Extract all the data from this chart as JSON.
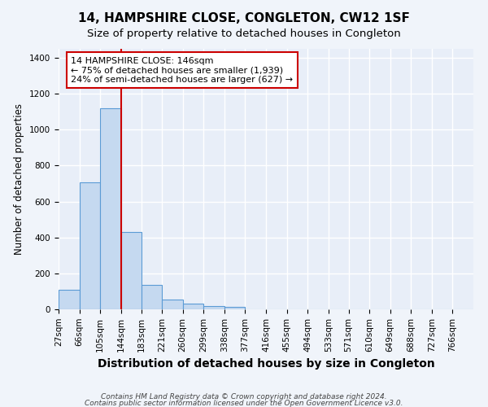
{
  "title": "14, HAMPSHIRE CLOSE, CONGLETON, CW12 1SF",
  "subtitle": "Size of property relative to detached houses in Congleton",
  "xlabel": "Distribution of detached houses by size in Congleton",
  "ylabel": "Number of detached properties",
  "footer_line1": "Contains HM Land Registry data © Crown copyright and database right 2024.",
  "footer_line2": "Contains public sector information licensed under the Open Government Licence v3.0.",
  "bar_edges": [
    27,
    66,
    105,
    144,
    183,
    221,
    260,
    299,
    338,
    377,
    416,
    455,
    494,
    533,
    571,
    610,
    649,
    688,
    727,
    766,
    805
  ],
  "bar_heights": [
    110,
    705,
    1120,
    430,
    135,
    53,
    32,
    18,
    13,
    0,
    0,
    0,
    0,
    0,
    0,
    0,
    0,
    0,
    0,
    0
  ],
  "bar_color": "#c5d9f0",
  "bar_edge_color": "#5b9bd5",
  "vline_x": 144,
  "vline_color": "#cc0000",
  "annotation_text": "14 HAMPSHIRE CLOSE: 146sqm\n← 75% of detached houses are smaller (1,939)\n24% of semi-detached houses are larger (627) →",
  "annotation_box_edge_color": "#cc0000",
  "ylim": [
    0,
    1450
  ],
  "yticks": [
    0,
    200,
    400,
    600,
    800,
    1000,
    1200,
    1400
  ],
  "bg_color": "#f0f4fa",
  "plot_bg_color": "#e8eef8",
  "grid_color": "#ffffff",
  "title_fontsize": 11,
  "subtitle_fontsize": 9.5,
  "ylabel_fontsize": 8.5,
  "xlabel_fontsize": 10,
  "tick_fontsize": 7.5,
  "footer_fontsize": 6.5
}
